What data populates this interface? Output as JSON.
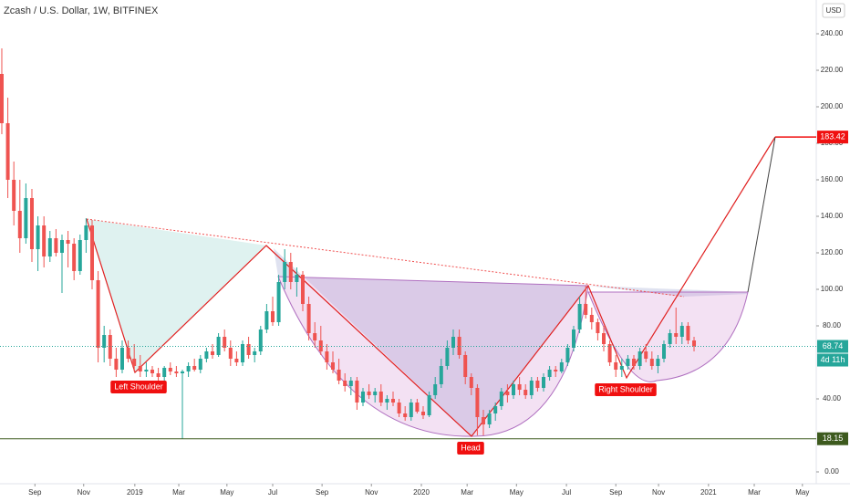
{
  "chart_data": {
    "type": "candlestick",
    "title": "Zcash / U.S. Dollar, 1W, BITFINEX",
    "currency": "USD",
    "up_color": "#26a69a",
    "down_color": "#ef5350",
    "candles": [
      [
        218,
        232,
        185,
        191
      ],
      [
        191,
        205,
        150,
        160
      ],
      [
        160,
        170,
        135,
        143
      ],
      [
        143,
        160,
        120,
        128
      ],
      [
        128,
        158,
        125,
        150
      ],
      [
        150,
        155,
        115,
        122
      ],
      [
        122,
        140,
        110,
        135
      ],
      [
        135,
        140,
        112,
        118
      ],
      [
        118,
        132,
        115,
        128
      ],
      [
        128,
        133,
        118,
        120
      ],
      [
        120,
        130,
        98,
        127
      ],
      [
        127,
        132,
        112,
        125
      ],
      [
        125,
        128,
        105,
        110
      ],
      [
        110,
        130,
        108,
        127
      ],
      [
        127,
        139,
        120,
        135
      ],
      [
        135,
        138,
        100,
        105
      ],
      [
        105,
        110,
        60,
        68
      ],
      [
        68,
        80,
        60,
        75
      ],
      [
        75,
        78,
        58,
        62
      ],
      [
        62,
        68,
        52,
        56
      ],
      [
        56,
        72,
        54,
        68
      ],
      [
        68,
        72,
        60,
        62
      ],
      [
        62,
        70,
        55,
        58
      ],
      [
        58,
        64,
        52,
        55
      ],
      [
        55,
        60,
        52,
        56
      ],
      [
        56,
        58,
        52,
        54
      ],
      [
        54,
        57,
        50,
        52
      ],
      [
        52,
        58,
        50,
        57
      ],
      [
        57,
        60,
        53,
        55
      ],
      [
        55,
        58,
        52,
        54
      ],
      [
        54,
        56,
        18,
        55
      ],
      [
        55,
        60,
        52,
        58
      ],
      [
        58,
        62,
        55,
        56
      ],
      [
        56,
        64,
        54,
        62
      ],
      [
        62,
        68,
        60,
        66
      ],
      [
        66,
        70,
        62,
        64
      ],
      [
        64,
        76,
        63,
        74
      ],
      [
        74,
        78,
        66,
        68
      ],
      [
        68,
        72,
        58,
        62
      ],
      [
        62,
        66,
        58,
        60
      ],
      [
        60,
        72,
        58,
        70
      ],
      [
        70,
        74,
        62,
        64
      ],
      [
        64,
        68,
        60,
        66
      ],
      [
        66,
        80,
        64,
        78
      ],
      [
        78,
        92,
        76,
        88
      ],
      [
        88,
        96,
        80,
        82
      ],
      [
        82,
        108,
        80,
        104
      ],
      [
        104,
        122,
        100,
        115
      ],
      [
        115,
        120,
        100,
        104
      ],
      [
        104,
        112,
        96,
        108
      ],
      [
        108,
        110,
        88,
        92
      ],
      [
        92,
        96,
        72,
        76
      ],
      [
        76,
        82,
        68,
        72
      ],
      [
        72,
        80,
        64,
        66
      ],
      [
        66,
        70,
        56,
        60
      ],
      [
        60,
        66,
        54,
        56
      ],
      [
        56,
        62,
        48,
        50
      ],
      [
        50,
        54,
        44,
        47
      ],
      [
        47,
        52,
        42,
        50
      ],
      [
        50,
        52,
        34,
        38
      ],
      [
        38,
        46,
        36,
        44
      ],
      [
        44,
        48,
        40,
        42
      ],
      [
        42,
        46,
        38,
        44
      ],
      [
        44,
        48,
        36,
        38
      ],
      [
        38,
        42,
        34,
        40
      ],
      [
        40,
        44,
        36,
        38
      ],
      [
        38,
        40,
        30,
        32
      ],
      [
        32,
        36,
        28,
        30
      ],
      [
        30,
        40,
        28,
        38
      ],
      [
        38,
        40,
        32,
        33
      ],
      [
        33,
        36,
        29,
        31
      ],
      [
        31,
        44,
        30,
        42
      ],
      [
        42,
        52,
        40,
        48
      ],
      [
        48,
        62,
        46,
        58
      ],
      [
        58,
        72,
        56,
        68
      ],
      [
        68,
        78,
        64,
        74
      ],
      [
        74,
        78,
        62,
        64
      ],
      [
        64,
        66,
        48,
        52
      ],
      [
        52,
        54,
        42,
        46
      ],
      [
        46,
        48,
        20,
        30
      ],
      [
        30,
        34,
        20,
        26
      ],
      [
        26,
        34,
        24,
        32
      ],
      [
        32,
        38,
        28,
        36
      ],
      [
        36,
        46,
        34,
        44
      ],
      [
        44,
        48,
        38,
        42
      ],
      [
        42,
        50,
        40,
        48
      ],
      [
        48,
        52,
        42,
        45
      ],
      [
        45,
        48,
        40,
        42
      ],
      [
        42,
        52,
        40,
        50
      ],
      [
        50,
        52,
        44,
        46
      ],
      [
        46,
        54,
        44,
        52
      ],
      [
        52,
        58,
        50,
        56
      ],
      [
        56,
        58,
        52,
        55
      ],
      [
        55,
        62,
        54,
        60
      ],
      [
        60,
        70,
        58,
        68
      ],
      [
        68,
        80,
        66,
        78
      ],
      [
        78,
        96,
        76,
        92
      ],
      [
        92,
        102,
        84,
        86
      ],
      [
        86,
        90,
        78,
        82
      ],
      [
        82,
        84,
        72,
        76
      ],
      [
        76,
        80,
        66,
        70
      ],
      [
        70,
        72,
        58,
        60
      ],
      [
        60,
        64,
        52,
        56
      ],
      [
        56,
        62,
        52,
        58
      ],
      [
        58,
        64,
        56,
        62
      ],
      [
        62,
        64,
        56,
        58
      ],
      [
        58,
        68,
        56,
        66
      ],
      [
        66,
        70,
        60,
        62
      ],
      [
        62,
        66,
        56,
        58
      ],
      [
        58,
        64,
        54,
        62
      ],
      [
        62,
        72,
        60,
        70
      ],
      [
        70,
        78,
        68,
        76
      ],
      [
        76,
        90,
        70,
        74
      ],
      [
        74,
        82,
        70,
        80
      ],
      [
        80,
        82,
        70,
        72
      ],
      [
        72,
        74,
        66,
        68.74
      ]
    ],
    "xlim": [
      -0.3,
      135.3
    ],
    "xticks": [
      {
        "value": 5.5,
        "label": "Sep"
      },
      {
        "value": 13.6,
        "label": "Nov"
      },
      {
        "value": 22.1,
        "label": "2019"
      },
      {
        "value": 29.4,
        "label": "Mar"
      },
      {
        "value": 37.4,
        "label": "May"
      },
      {
        "value": 45,
        "label": "Jul"
      },
      {
        "value": 53.2,
        "label": "Sep"
      },
      {
        "value": 61.4,
        "label": "Nov"
      },
      {
        "value": 69.7,
        "label": "2020"
      },
      {
        "value": 77.3,
        "label": "Mar"
      },
      {
        "value": 85.5,
        "label": "May"
      },
      {
        "value": 93.8,
        "label": "Jul"
      },
      {
        "value": 102,
        "label": "Sep"
      },
      {
        "value": 109.1,
        "label": "Nov"
      },
      {
        "value": 117.4,
        "label": "2021"
      },
      {
        "value": 125,
        "label": "Mar"
      },
      {
        "value": 133,
        "label": "May"
      }
    ],
    "ylim": [
      -6.5,
      258.5
    ],
    "yticks": [
      {
        "value": 0,
        "label": "0.00"
      },
      {
        "value": 40,
        "label": "40.00"
      },
      {
        "value": 80,
        "label": "80.00"
      },
      {
        "value": 100,
        "label": "100.00"
      },
      {
        "value": 120,
        "label": "120.00"
      },
      {
        "value": 140,
        "label": "140.00"
      },
      {
        "value": 160,
        "label": "160.00"
      },
      {
        "value": 180,
        "label": "180.00"
      },
      {
        "value": 200,
        "label": "200.00"
      },
      {
        "value": 220,
        "label": "220.00"
      },
      {
        "value": 240,
        "label": "240.00"
      }
    ],
    "levels": [
      {
        "value": 183.42,
        "color": "#f01010"
      },
      {
        "value": 68.74,
        "color": "#26a69a",
        "note": "4d 11h"
      },
      {
        "value": 18.15,
        "color": "#3d5a1e"
      }
    ],
    "annotations": [
      "Left Shoulder",
      "Head",
      "Right Shoulder"
    ]
  }
}
